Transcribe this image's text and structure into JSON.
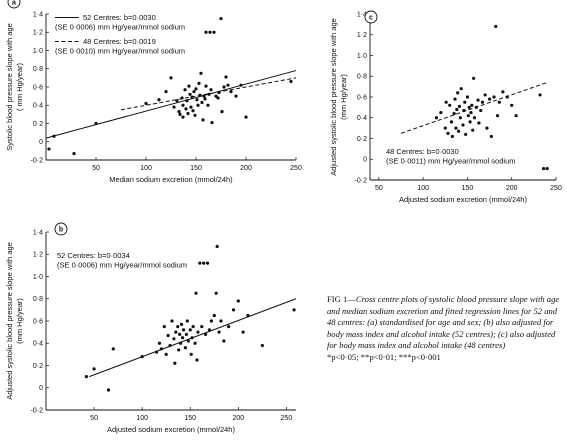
{
  "chart_data": [
    {
      "type": "scatter",
      "panel": "a",
      "xlabel": "Median sodium excretion (mmol/24h)",
      "ylabel": [
        "Systolic blood pressure slope with age",
        "( mm Hg/year)"
      ],
      "xlim": [
        0,
        250
      ],
      "ylim": [
        -0.2,
        1.4
      ],
      "x_ticks": [
        "50",
        "100",
        "150",
        "200",
        "250"
      ],
      "y_ticks": [
        "-0·2",
        "0",
        "0·2",
        "0·4",
        "0·6",
        "0·8",
        "1·0",
        "1·2",
        "1·4"
      ],
      "legend": [
        {
          "style": "solid",
          "line1": "52 Centres: b=0·0030",
          "line2": "(SE 0·0006) mm Hg/year/mmol sodium"
        },
        {
          "style": "dashed",
          "line1": "48 Centres: b=0·0019",
          "line2": "(SE 0·0010) mm Hg/year/mmol sodium"
        }
      ],
      "fit_lines": [
        {
          "style": "solid",
          "x": [
            0,
            250
          ],
          "y": [
            0.04,
            0.78
          ]
        },
        {
          "style": "dashed",
          "x": [
            75,
            250
          ],
          "y": [
            0.35,
            0.7
          ]
        }
      ],
      "points": [
        [
          3,
          -0.08
        ],
        [
          8,
          0.06
        ],
        [
          28,
          -0.13
        ],
        [
          50,
          0.2
        ],
        [
          100,
          0.42
        ],
        [
          113,
          0.46
        ],
        [
          120,
          0.55
        ],
        [
          125,
          0.7
        ],
        [
          128,
          0.38
        ],
        [
          131,
          0.45
        ],
        [
          133,
          0.33
        ],
        [
          134,
          0.3
        ],
        [
          136,
          0.48
        ],
        [
          137,
          0.4
        ],
        [
          137,
          0.27
        ],
        [
          139,
          0.57
        ],
        [
          140,
          0.36
        ],
        [
          141,
          0.45
        ],
        [
          142,
          0.31
        ],
        [
          143,
          0.61
        ],
        [
          144,
          0.52
        ],
        [
          145,
          0.38
        ],
        [
          146,
          0.49
        ],
        [
          147,
          0.34
        ],
        [
          148,
          0.55
        ],
        [
          149,
          0.29
        ],
        [
          150,
          0.58
        ],
        [
          151,
          0.46
        ],
        [
          152,
          0.4
        ],
        [
          153,
          0.64
        ],
        [
          154,
          0.51
        ],
        [
          155,
          0.75
        ],
        [
          156,
          0.43
        ],
        [
          157,
          0.24
        ],
        [
          158,
          0.5
        ],
        [
          159,
          0.47
        ],
        [
          160,
          0.61
        ],
        [
          160,
          1.2
        ],
        [
          162,
          0.4
        ],
        [
          163,
          0.52
        ],
        [
          164,
          1.2
        ],
        [
          165,
          0.57
        ],
        [
          166,
          0.21
        ],
        [
          168,
          1.2
        ],
        [
          170,
          0.5
        ],
        [
          172,
          0.48
        ],
        [
          173,
          0.54
        ],
        [
          175,
          1.35
        ],
        [
          176,
          0.33
        ],
        [
          178,
          0.6
        ],
        [
          180,
          0.71
        ],
        [
          182,
          0.62
        ],
        [
          185,
          0.55
        ],
        [
          190,
          0.5
        ],
        [
          195,
          0.62
        ],
        [
          200,
          0.27
        ],
        [
          245,
          0.66
        ]
      ]
    },
    {
      "type": "scatter",
      "panel": "c",
      "xlabel": "Adjusted sodium excretion (mmol/24h)",
      "ylabel": [
        "Adjusted systolic blood pressure slope with age",
        "(mm Hg/year)"
      ],
      "xlim": [
        40,
        250
      ],
      "ylim": [
        -0.2,
        1.4
      ],
      "x_ticks": [
        "50",
        "100",
        "150",
        "200",
        "250"
      ],
      "y_ticks": [
        "-0·2",
        "0",
        "0·2",
        "0·4",
        "0·6",
        "0·8",
        "1·0",
        "1·2",
        "1·4"
      ],
      "legend": [
        {
          "style": "dashed",
          "line1": "48 Centres: b=0·0030",
          "line2": "(SE 0·0011) mm Hg/year/mmol sodium"
        }
      ],
      "fit_lines": [
        {
          "style": "dashed",
          "x": [
            75,
            240
          ],
          "y": [
            0.25,
            0.74
          ]
        }
      ],
      "points": [
        [
          115,
          0.4
        ],
        [
          120,
          0.45
        ],
        [
          125,
          0.3
        ],
        [
          126,
          0.55
        ],
        [
          128,
          0.25
        ],
        [
          130,
          0.52
        ],
        [
          132,
          0.36
        ],
        [
          133,
          0.22
        ],
        [
          135,
          0.44
        ],
        [
          136,
          0.58
        ],
        [
          137,
          0.3
        ],
        [
          138,
          0.48
        ],
        [
          139,
          0.64
        ],
        [
          140,
          0.27
        ],
        [
          141,
          0.51
        ],
        [
          142,
          0.4
        ],
        [
          143,
          0.68
        ],
        [
          145,
          0.33
        ],
        [
          146,
          0.47
        ],
        [
          147,
          0.55
        ],
        [
          148,
          0.24
        ],
        [
          150,
          0.6
        ],
        [
          151,
          0.42
        ],
        [
          152,
          0.5
        ],
        [
          153,
          0.36
        ],
        [
          154,
          0.45
        ],
        [
          155,
          0.52
        ],
        [
          156,
          0.28
        ],
        [
          157,
          0.78
        ],
        [
          158,
          0.4
        ],
        [
          160,
          0.5
        ],
        [
          162,
          0.57
        ],
        [
          163,
          0.35
        ],
        [
          165,
          0.47
        ],
        [
          167,
          0.55
        ],
        [
          170,
          0.62
        ],
        [
          172,
          0.3
        ],
        [
          175,
          0.58
        ],
        [
          177,
          0.22
        ],
        [
          180,
          0.6
        ],
        [
          182,
          1.28
        ],
        [
          184,
          0.42
        ],
        [
          186,
          0.55
        ],
        [
          190,
          0.65
        ],
        [
          195,
          0.6
        ],
        [
          200,
          0.52
        ],
        [
          205,
          0.42
        ],
        [
          232,
          0.62
        ],
        [
          236,
          -0.09
        ],
        [
          240,
          -0.09
        ]
      ]
    },
    {
      "type": "scatter",
      "panel": "b",
      "xlabel": "Adjusted sodium excretion (mmol/24h)",
      "ylabel": [
        "Adjusted systolic blood pressure slope with age",
        "(mm Hg/year)"
      ],
      "xlim": [
        0,
        260
      ],
      "ylim": [
        -0.2,
        1.4
      ],
      "x_ticks": [
        "50",
        "100",
        "150",
        "200",
        "250"
      ],
      "y_ticks": [
        "-0·2",
        "0",
        "0·2",
        "0·4",
        "0·6",
        "0·8",
        "1·0",
        "1·2",
        "1·4"
      ],
      "legend": [
        {
          "style": "solid",
          "line1": "52 Centres: b=0·0034",
          "line2": "(SE 0·0006) mm Hg/year/mmol sodium"
        }
      ],
      "fit_lines": [
        {
          "style": "solid",
          "x": [
            45,
            260
          ],
          "y": [
            0.1,
            0.8
          ]
        }
      ],
      "points": [
        [
          42,
          0.1
        ],
        [
          50,
          0.17
        ],
        [
          65,
          -0.02
        ],
        [
          70,
          0.35
        ],
        [
          100,
          0.28
        ],
        [
          115,
          0.32
        ],
        [
          118,
          0.4
        ],
        [
          120,
          0.35
        ],
        [
          123,
          0.55
        ],
        [
          125,
          0.3
        ],
        [
          127,
          0.47
        ],
        [
          129,
          0.38
        ],
        [
          131,
          0.6
        ],
        [
          133,
          0.44
        ],
        [
          134,
          0.22
        ],
        [
          135,
          0.5
        ],
        [
          137,
          0.55
        ],
        [
          138,
          0.34
        ],
        [
          139,
          0.48
        ],
        [
          140,
          0.4
        ],
        [
          141,
          0.57
        ],
        [
          142,
          0.45
        ],
        [
          143,
          0.52
        ],
        [
          145,
          0.36
        ],
        [
          146,
          0.48
        ],
        [
          147,
          0.6
        ],
        [
          148,
          0.42
        ],
        [
          150,
          0.52
        ],
        [
          151,
          0.3
        ],
        [
          152,
          0.45
        ],
        [
          153,
          0.55
        ],
        [
          155,
          0.4
        ],
        [
          156,
          0.85
        ],
        [
          157,
          0.25
        ],
        [
          158,
          0.5
        ],
        [
          160,
          1.12
        ],
        [
          162,
          0.55
        ],
        [
          164,
          1.12
        ],
        [
          166,
          0.48
        ],
        [
          168,
          1.12
        ],
        [
          170,
          0.52
        ],
        [
          172,
          0.6
        ],
        [
          175,
          0.65
        ],
        [
          177,
          0.85
        ],
        [
          178,
          1.27
        ],
        [
          180,
          0.5
        ],
        [
          182,
          0.6
        ],
        [
          185,
          0.42
        ],
        [
          190,
          0.55
        ],
        [
          195,
          0.7
        ],
        [
          200,
          0.78
        ],
        [
          205,
          0.5
        ],
        [
          210,
          0.65
        ],
        [
          225,
          0.38
        ],
        [
          258,
          0.7
        ]
      ]
    }
  ],
  "caption": {
    "head": "FIG 1—",
    "body": "Cross centre plots of systolic blood pressure slope with age and median sodium excretion and fitted regression lines for 52 and 48 centres: (a) standardised for age and sex; (b) also adjusted for body mass index and alcohol intake (52 centres); (c) also adjusted for body mass index and alcohol intake (48 centres)",
    "significance": "*p<0·05; **p<0·01; ***p<0·001"
  }
}
